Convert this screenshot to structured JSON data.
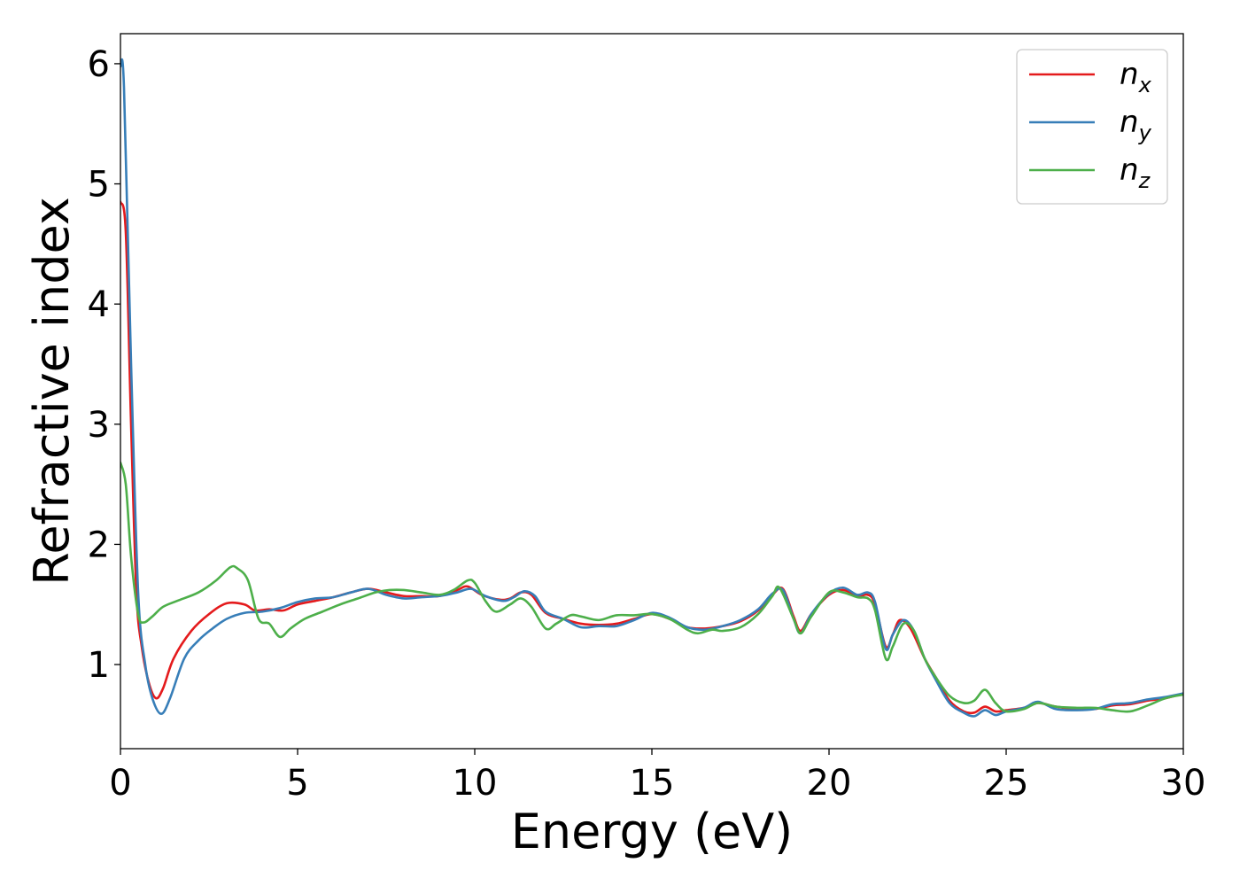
{
  "chart_data": {
    "type": "line",
    "title": "",
    "xlabel": "Energy (eV)",
    "ylabel": "Refractive index",
    "xlim": [
      0,
      30
    ],
    "ylim": [
      0.3,
      6.25
    ],
    "xticks": [
      0,
      5,
      10,
      15,
      20,
      25,
      30
    ],
    "xtick_labels": [
      "0",
      "5",
      "10",
      "15",
      "20",
      "25",
      "30"
    ],
    "yticks": [
      1,
      2,
      3,
      4,
      5,
      6
    ],
    "ytick_labels": [
      "1",
      "2",
      "3",
      "4",
      "5",
      "6"
    ],
    "grid": false,
    "legend_position": "top-right",
    "series": [
      {
        "name": "n",
        "subscript": "x",
        "color": "#e41a1c",
        "points": [
          [
            0,
            4.85
          ],
          [
            0.15,
            4.6
          ],
          [
            0.3,
            3.0
          ],
          [
            0.45,
            1.6
          ],
          [
            0.6,
            1.15
          ],
          [
            0.8,
            0.85
          ],
          [
            1.0,
            0.72
          ],
          [
            1.2,
            0.8
          ],
          [
            1.5,
            1.05
          ],
          [
            2.0,
            1.28
          ],
          [
            2.5,
            1.42
          ],
          [
            3.0,
            1.51
          ],
          [
            3.5,
            1.5
          ],
          [
            3.8,
            1.45
          ],
          [
            4.2,
            1.46
          ],
          [
            4.6,
            1.45
          ],
          [
            5.0,
            1.5
          ],
          [
            5.5,
            1.53
          ],
          [
            6.0,
            1.56
          ],
          [
            6.5,
            1.6
          ],
          [
            7.0,
            1.63
          ],
          [
            7.5,
            1.6
          ],
          [
            8.0,
            1.57
          ],
          [
            8.5,
            1.57
          ],
          [
            9.0,
            1.57
          ],
          [
            9.5,
            1.62
          ],
          [
            9.8,
            1.65
          ],
          [
            10.2,
            1.58
          ],
          [
            10.7,
            1.54
          ],
          [
            11.0,
            1.55
          ],
          [
            11.3,
            1.6
          ],
          [
            11.6,
            1.58
          ],
          [
            12.0,
            1.43
          ],
          [
            12.5,
            1.38
          ],
          [
            13.0,
            1.34
          ],
          [
            13.5,
            1.33
          ],
          [
            14.0,
            1.34
          ],
          [
            14.5,
            1.38
          ],
          [
            15.0,
            1.42
          ],
          [
            15.5,
            1.38
          ],
          [
            16.0,
            1.31
          ],
          [
            16.5,
            1.3
          ],
          [
            17.0,
            1.32
          ],
          [
            17.5,
            1.36
          ],
          [
            18.0,
            1.45
          ],
          [
            18.4,
            1.58
          ],
          [
            18.7,
            1.63
          ],
          [
            19.0,
            1.4
          ],
          [
            19.2,
            1.28
          ],
          [
            19.5,
            1.42
          ],
          [
            20.0,
            1.58
          ],
          [
            20.4,
            1.62
          ],
          [
            20.8,
            1.57
          ],
          [
            21.1,
            1.58
          ],
          [
            21.3,
            1.5
          ],
          [
            21.6,
            1.15
          ],
          [
            21.8,
            1.25
          ],
          [
            22.0,
            1.37
          ],
          [
            22.3,
            1.3
          ],
          [
            22.7,
            1.05
          ],
          [
            23.0,
            0.9
          ],
          [
            23.4,
            0.7
          ],
          [
            23.8,
            0.61
          ],
          [
            24.1,
            0.6
          ],
          [
            24.4,
            0.65
          ],
          [
            24.7,
            0.61
          ],
          [
            25.0,
            0.62
          ],
          [
            25.5,
            0.64
          ],
          [
            25.9,
            0.68
          ],
          [
            26.4,
            0.65
          ],
          [
            27.0,
            0.63
          ],
          [
            27.5,
            0.63
          ],
          [
            28.0,
            0.66
          ],
          [
            28.5,
            0.67
          ],
          [
            29.0,
            0.7
          ],
          [
            29.5,
            0.72
          ],
          [
            30.0,
            0.76
          ]
        ]
      },
      {
        "name": "n",
        "subscript": "y",
        "color": "#377eb8",
        "points": [
          [
            0,
            5.98
          ],
          [
            0.1,
            5.8
          ],
          [
            0.3,
            3.5
          ],
          [
            0.5,
            1.6
          ],
          [
            0.7,
            1.0
          ],
          [
            0.9,
            0.72
          ],
          [
            1.15,
            0.59
          ],
          [
            1.4,
            0.72
          ],
          [
            1.8,
            1.05
          ],
          [
            2.2,
            1.2
          ],
          [
            2.6,
            1.3
          ],
          [
            3.0,
            1.38
          ],
          [
            3.5,
            1.43
          ],
          [
            4.0,
            1.44
          ],
          [
            4.5,
            1.47
          ],
          [
            5.0,
            1.52
          ],
          [
            5.5,
            1.55
          ],
          [
            6.0,
            1.56
          ],
          [
            6.5,
            1.6
          ],
          [
            7.0,
            1.63
          ],
          [
            7.5,
            1.58
          ],
          [
            8.0,
            1.55
          ],
          [
            8.5,
            1.56
          ],
          [
            9.0,
            1.57
          ],
          [
            9.5,
            1.6
          ],
          [
            9.9,
            1.63
          ],
          [
            10.3,
            1.57
          ],
          [
            10.8,
            1.53
          ],
          [
            11.1,
            1.56
          ],
          [
            11.4,
            1.61
          ],
          [
            11.7,
            1.57
          ],
          [
            12.0,
            1.44
          ],
          [
            12.5,
            1.38
          ],
          [
            13.0,
            1.31
          ],
          [
            13.5,
            1.32
          ],
          [
            14.0,
            1.32
          ],
          [
            14.5,
            1.37
          ],
          [
            15.0,
            1.43
          ],
          [
            15.5,
            1.39
          ],
          [
            16.0,
            1.31
          ],
          [
            16.5,
            1.29
          ],
          [
            17.0,
            1.32
          ],
          [
            17.5,
            1.37
          ],
          [
            18.0,
            1.46
          ],
          [
            18.4,
            1.59
          ],
          [
            18.7,
            1.62
          ],
          [
            19.0,
            1.38
          ],
          [
            19.2,
            1.26
          ],
          [
            19.5,
            1.42
          ],
          [
            20.0,
            1.59
          ],
          [
            20.4,
            1.64
          ],
          [
            20.8,
            1.58
          ],
          [
            21.1,
            1.6
          ],
          [
            21.3,
            1.52
          ],
          [
            21.6,
            1.13
          ],
          [
            21.8,
            1.25
          ],
          [
            22.1,
            1.37
          ],
          [
            22.4,
            1.28
          ],
          [
            22.7,
            1.05
          ],
          [
            23.0,
            0.88
          ],
          [
            23.4,
            0.68
          ],
          [
            23.8,
            0.6
          ],
          [
            24.1,
            0.57
          ],
          [
            24.4,
            0.62
          ],
          [
            24.7,
            0.58
          ],
          [
            25.0,
            0.61
          ],
          [
            25.5,
            0.64
          ],
          [
            25.9,
            0.69
          ],
          [
            26.4,
            0.63
          ],
          [
            27.0,
            0.62
          ],
          [
            27.5,
            0.63
          ],
          [
            28.0,
            0.67
          ],
          [
            28.5,
            0.68
          ],
          [
            29.0,
            0.71
          ],
          [
            29.5,
            0.73
          ],
          [
            30.0,
            0.76
          ]
        ]
      },
      {
        "name": "n",
        "subscript": "z",
        "color": "#4daf4a",
        "points": [
          [
            0,
            2.68
          ],
          [
            0.15,
            2.5
          ],
          [
            0.3,
            1.9
          ],
          [
            0.5,
            1.42
          ],
          [
            0.65,
            1.35
          ],
          [
            0.9,
            1.4
          ],
          [
            1.2,
            1.48
          ],
          [
            1.6,
            1.53
          ],
          [
            2.2,
            1.6
          ],
          [
            2.7,
            1.7
          ],
          [
            3.1,
            1.81
          ],
          [
            3.3,
            1.8
          ],
          [
            3.6,
            1.7
          ],
          [
            3.9,
            1.38
          ],
          [
            4.2,
            1.34
          ],
          [
            4.5,
            1.23
          ],
          [
            4.8,
            1.3
          ],
          [
            5.2,
            1.38
          ],
          [
            5.7,
            1.44
          ],
          [
            6.2,
            1.5
          ],
          [
            6.7,
            1.55
          ],
          [
            7.2,
            1.6
          ],
          [
            7.6,
            1.62
          ],
          [
            8.0,
            1.62
          ],
          [
            8.5,
            1.6
          ],
          [
            9.0,
            1.58
          ],
          [
            9.4,
            1.62
          ],
          [
            9.8,
            1.7
          ],
          [
            10.0,
            1.68
          ],
          [
            10.3,
            1.53
          ],
          [
            10.6,
            1.44
          ],
          [
            11.0,
            1.5
          ],
          [
            11.3,
            1.55
          ],
          [
            11.6,
            1.48
          ],
          [
            12.0,
            1.3
          ],
          [
            12.3,
            1.34
          ],
          [
            12.7,
            1.41
          ],
          [
            13.0,
            1.4
          ],
          [
            13.5,
            1.37
          ],
          [
            14.0,
            1.41
          ],
          [
            14.5,
            1.41
          ],
          [
            15.0,
            1.42
          ],
          [
            15.5,
            1.38
          ],
          [
            16.0,
            1.29
          ],
          [
            16.3,
            1.26
          ],
          [
            16.7,
            1.29
          ],
          [
            17.0,
            1.28
          ],
          [
            17.5,
            1.31
          ],
          [
            18.0,
            1.42
          ],
          [
            18.4,
            1.57
          ],
          [
            18.6,
            1.64
          ],
          [
            19.0,
            1.38
          ],
          [
            19.2,
            1.26
          ],
          [
            19.5,
            1.4
          ],
          [
            20.0,
            1.6
          ],
          [
            20.4,
            1.6
          ],
          [
            20.8,
            1.56
          ],
          [
            21.1,
            1.55
          ],
          [
            21.3,
            1.45
          ],
          [
            21.6,
            1.05
          ],
          [
            21.8,
            1.15
          ],
          [
            22.1,
            1.34
          ],
          [
            22.4,
            1.28
          ],
          [
            22.7,
            1.05
          ],
          [
            23.0,
            0.9
          ],
          [
            23.4,
            0.74
          ],
          [
            23.8,
            0.68
          ],
          [
            24.1,
            0.7
          ],
          [
            24.4,
            0.79
          ],
          [
            24.7,
            0.68
          ],
          [
            25.0,
            0.61
          ],
          [
            25.5,
            0.63
          ],
          [
            25.9,
            0.68
          ],
          [
            26.4,
            0.65
          ],
          [
            27.0,
            0.64
          ],
          [
            27.5,
            0.64
          ],
          [
            28.0,
            0.62
          ],
          [
            28.5,
            0.61
          ],
          [
            29.0,
            0.66
          ],
          [
            29.5,
            0.72
          ],
          [
            30.0,
            0.75
          ]
        ]
      }
    ]
  }
}
